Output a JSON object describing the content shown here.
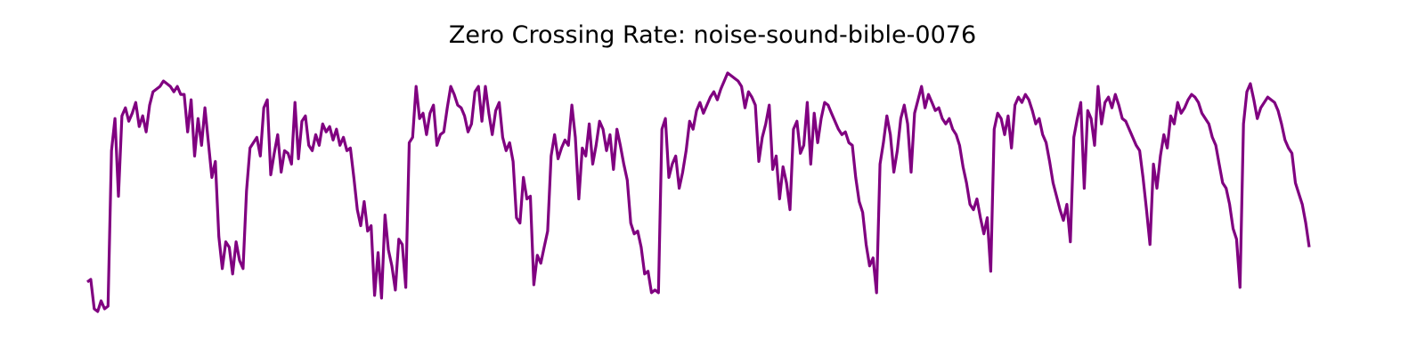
{
  "chart_data": {
    "type": "line",
    "title": "Zero Crossing Rate: noise-sound-bible-0076",
    "xlabel": "",
    "ylabel": "",
    "axes_visible": false,
    "grid": false,
    "line_color": "#800080",
    "series": [
      {
        "values": [
          0.11,
          0.12,
          0.01,
          0.0,
          0.04,
          0.01,
          0.02,
          0.6,
          0.72,
          0.43,
          0.73,
          0.76,
          0.71,
          0.74,
          0.78,
          0.69,
          0.73,
          0.67,
          0.77,
          0.82,
          0.83,
          0.84,
          0.86,
          0.85,
          0.84,
          0.82,
          0.84,
          0.81,
          0.81,
          0.67,
          0.79,
          0.58,
          0.72,
          0.62,
          0.76,
          0.63,
          0.5,
          0.56,
          0.28,
          0.16,
          0.26,
          0.24,
          0.14,
          0.26,
          0.19,
          0.16,
          0.45,
          0.61,
          0.63,
          0.65,
          0.58,
          0.76,
          0.79,
          0.51,
          0.59,
          0.66,
          0.52,
          0.6,
          0.59,
          0.55,
          0.78,
          0.57,
          0.71,
          0.73,
          0.62,
          0.6,
          0.66,
          0.62,
          0.7,
          0.67,
          0.69,
          0.64,
          0.68,
          0.62,
          0.65,
          0.6,
          0.61,
          0.5,
          0.38,
          0.32,
          0.41,
          0.3,
          0.32,
          0.06,
          0.22,
          0.05,
          0.36,
          0.23,
          0.17,
          0.08,
          0.27,
          0.25,
          0.09,
          0.63,
          0.65,
          0.84,
          0.72,
          0.74,
          0.66,
          0.74,
          0.77,
          0.62,
          0.66,
          0.67,
          0.76,
          0.84,
          0.81,
          0.77,
          0.76,
          0.73,
          0.67,
          0.7,
          0.82,
          0.84,
          0.71,
          0.84,
          0.74,
          0.66,
          0.75,
          0.78,
          0.65,
          0.6,
          0.63,
          0.56,
          0.35,
          0.33,
          0.5,
          0.42,
          0.43,
          0.1,
          0.21,
          0.18,
          0.24,
          0.3,
          0.58,
          0.66,
          0.57,
          0.61,
          0.64,
          0.62,
          0.77,
          0.65,
          0.42,
          0.61,
          0.58,
          0.7,
          0.55,
          0.62,
          0.71,
          0.68,
          0.6,
          0.66,
          0.53,
          0.68,
          0.62,
          0.55,
          0.49,
          0.33,
          0.29,
          0.3,
          0.24,
          0.14,
          0.15,
          0.07,
          0.08,
          0.07,
          0.68,
          0.72,
          0.5,
          0.55,
          0.58,
          0.46,
          0.52,
          0.6,
          0.71,
          0.68,
          0.75,
          0.78,
          0.74,
          0.77,
          0.8,
          0.82,
          0.79,
          0.83,
          0.86,
          0.89,
          0.88,
          0.87,
          0.86,
          0.84,
          0.76,
          0.82,
          0.8,
          0.77,
          0.56,
          0.65,
          0.7,
          0.77,
          0.53,
          0.58,
          0.42,
          0.54,
          0.48,
          0.38,
          0.68,
          0.71,
          0.59,
          0.62,
          0.78,
          0.55,
          0.74,
          0.63,
          0.72,
          0.78,
          0.77,
          0.74,
          0.71,
          0.68,
          0.66,
          0.67,
          0.63,
          0.62,
          0.5,
          0.41,
          0.37,
          0.25,
          0.17,
          0.2,
          0.07,
          0.55,
          0.63,
          0.73,
          0.66,
          0.52,
          0.6,
          0.72,
          0.77,
          0.7,
          0.52,
          0.74,
          0.79,
          0.84,
          0.76,
          0.81,
          0.78,
          0.75,
          0.76,
          0.72,
          0.7,
          0.72,
          0.68,
          0.66,
          0.62,
          0.54,
          0.48,
          0.4,
          0.38,
          0.42,
          0.35,
          0.29,
          0.35,
          0.15,
          0.68,
          0.74,
          0.72,
          0.66,
          0.73,
          0.61,
          0.77,
          0.8,
          0.78,
          0.81,
          0.79,
          0.75,
          0.7,
          0.72,
          0.66,
          0.63,
          0.56,
          0.48,
          0.43,
          0.38,
          0.34,
          0.4,
          0.26,
          0.65,
          0.72,
          0.78,
          0.46,
          0.75,
          0.72,
          0.62,
          0.84,
          0.7,
          0.78,
          0.8,
          0.76,
          0.81,
          0.77,
          0.72,
          0.71,
          0.68,
          0.65,
          0.62,
          0.6,
          0.5,
          0.38,
          0.25,
          0.55,
          0.46,
          0.58,
          0.66,
          0.61,
          0.73,
          0.7,
          0.78,
          0.74,
          0.76,
          0.79,
          0.81,
          0.8,
          0.78,
          0.74,
          0.72,
          0.7,
          0.65,
          0.62,
          0.55,
          0.48,
          0.46,
          0.4,
          0.31,
          0.27,
          0.09,
          0.7,
          0.82,
          0.85,
          0.79,
          0.72,
          0.76,
          0.78,
          0.8,
          0.79,
          0.78,
          0.75,
          0.7,
          0.64,
          0.61,
          0.59,
          0.48,
          0.44,
          0.4,
          0.33,
          0.24
        ],
        "name": ""
      }
    ]
  }
}
